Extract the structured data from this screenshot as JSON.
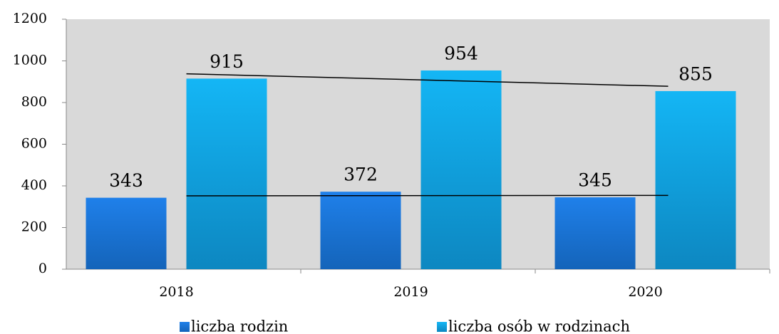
{
  "chart_data": {
    "type": "bar",
    "categories": [
      "2018",
      "2019",
      "2020"
    ],
    "series": [
      {
        "name": "liczba rodzin",
        "color": "#1f80ea",
        "values": [
          343,
          372,
          345
        ]
      },
      {
        "name": "liczba osób w rodzinach",
        "color": "#14b6f5",
        "values": [
          915,
          954,
          855
        ]
      }
    ],
    "ylim": [
      0,
      1200
    ],
    "yticks": [
      0,
      200,
      400,
      600,
      800,
      1000,
      1200
    ],
    "trendline": true,
    "legend": "bottom"
  }
}
